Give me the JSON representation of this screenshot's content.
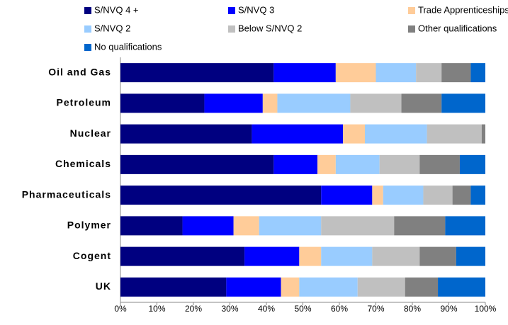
{
  "chart_data": {
    "type": "stacked_barh",
    "categories": [
      "Oil and Gas",
      "Petroleum",
      "Nuclear",
      "Chemicals",
      "Pharmaceuticals",
      "Polymer",
      "Cogent",
      "UK"
    ],
    "series": [
      {
        "name": "S/NVQ 4 +",
        "color": "#000080",
        "values": [
          42,
          23,
          36,
          42,
          55,
          17,
          34,
          29
        ]
      },
      {
        "name": "S/NVQ 3",
        "color": "#0000ff",
        "values": [
          17,
          16,
          25,
          12,
          14,
          14,
          15,
          15
        ]
      },
      {
        "name": "Trade Apprenticeships",
        "color": "#ffcc99",
        "values": [
          11,
          4,
          6,
          5,
          3,
          7,
          6,
          5
        ]
      },
      {
        "name": "S/NVQ 2",
        "color": "#99ccff",
        "values": [
          11,
          20,
          17,
          12,
          11,
          17,
          14,
          16
        ]
      },
      {
        "name": "Below S/NVQ 2",
        "color": "#c0c0c0",
        "values": [
          7,
          14,
          15,
          11,
          8,
          20,
          13,
          13
        ]
      },
      {
        "name": "Other qualifications",
        "color": "#808080",
        "values": [
          8,
          11,
          1,
          11,
          5,
          14,
          10,
          9
        ]
      },
      {
        "name": "No qualifications",
        "color": "#0066cc",
        "values": [
          4,
          12,
          0,
          7,
          4,
          11,
          8,
          13
        ]
      }
    ],
    "xlim": [
      0,
      100
    ],
    "xticks": [
      {
        "value": 0,
        "label": "0%"
      },
      {
        "value": 10,
        "label": "10%"
      },
      {
        "value": 20,
        "label": "20%"
      },
      {
        "value": 30,
        "label": "30%"
      },
      {
        "value": 40,
        "label": "40%"
      },
      {
        "value": 50,
        "label": "50%"
      },
      {
        "value": 60,
        "label": "60%"
      },
      {
        "value": 70,
        "label": "70%"
      },
      {
        "value": 80,
        "label": "80%"
      },
      {
        "value": 90,
        "label": "90%"
      },
      {
        "value": 100,
        "label": "100%"
      }
    ],
    "legend": "top"
  }
}
